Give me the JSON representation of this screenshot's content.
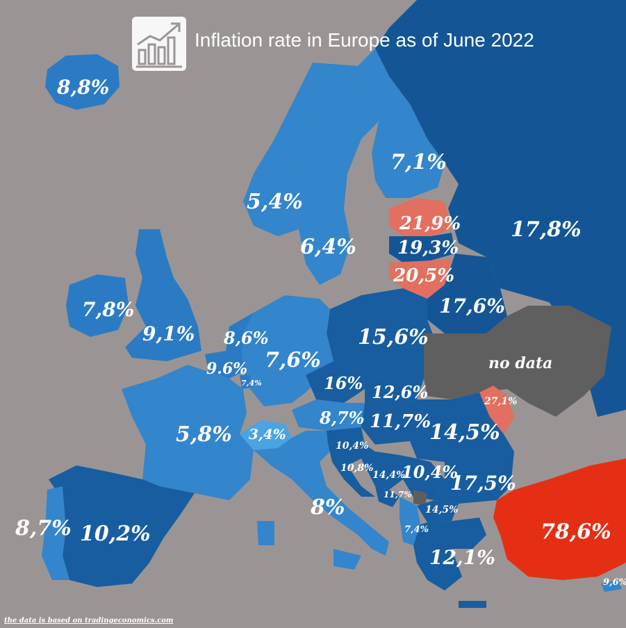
{
  "title": "Inflation rate in Europe as of June 2022",
  "source": "the data is based on tradingeconomics.com",
  "icon": "bar-chart-trend-icon",
  "colors": {
    "background": "#9a9594",
    "light_blue": "#3385cc",
    "mid_blue": "#2a7bc4",
    "dark_blue": "#175da0",
    "navy": "#145695",
    "switzerland": "#4aa3e3",
    "salmon": "#e26f5f",
    "turkey": "#e52f14",
    "no_data": "#5f5f5f"
  },
  "regions": [
    {
      "id": "iceland",
      "value": "8,8%"
    },
    {
      "id": "norway",
      "value": "5,4%"
    },
    {
      "id": "sweden",
      "value": "6,4%"
    },
    {
      "id": "finland",
      "value": "7,1%"
    },
    {
      "id": "estonia",
      "value": "21,9%"
    },
    {
      "id": "latvia",
      "value": "19,3%"
    },
    {
      "id": "lithuania",
      "value": "20,5%"
    },
    {
      "id": "russia",
      "value": "17,8%"
    },
    {
      "id": "belarus",
      "value": "17,6%"
    },
    {
      "id": "ireland",
      "value": "7,8%"
    },
    {
      "id": "uk",
      "value": "9,1%"
    },
    {
      "id": "netherlands",
      "value": "8,6%"
    },
    {
      "id": "belgium",
      "value": "9.6%"
    },
    {
      "id": "luxembourg",
      "value": "7,4%"
    },
    {
      "id": "germany",
      "value": "7,6%"
    },
    {
      "id": "poland",
      "value": "15,6%"
    },
    {
      "id": "ukraine",
      "value": "no data"
    },
    {
      "id": "czechia",
      "value": "16%"
    },
    {
      "id": "slovakia",
      "value": "12,6%"
    },
    {
      "id": "moldova",
      "value": "27,1%"
    },
    {
      "id": "france",
      "value": "5,8%"
    },
    {
      "id": "switzerland",
      "value": "3,4%"
    },
    {
      "id": "austria",
      "value": "8,7%"
    },
    {
      "id": "hungary",
      "value": "11,7%"
    },
    {
      "id": "romania",
      "value": "14,5%"
    },
    {
      "id": "slovenia",
      "value": "10,4%"
    },
    {
      "id": "croatia",
      "value": "10,8%"
    },
    {
      "id": "bosnia",
      "value": "14,4%"
    },
    {
      "id": "serbia",
      "value": "10,4%"
    },
    {
      "id": "montenegro",
      "value": "11,7%"
    },
    {
      "id": "bulgaria",
      "value": "17,5%"
    },
    {
      "id": "north-macedonia",
      "value": "14,5%"
    },
    {
      "id": "albania",
      "value": "7,4%"
    },
    {
      "id": "italy",
      "value": "8%"
    },
    {
      "id": "portugal",
      "value": "8,7%"
    },
    {
      "id": "spain",
      "value": "10,2%"
    },
    {
      "id": "greece",
      "value": "12,1%"
    },
    {
      "id": "turkey",
      "value": "78,6%"
    },
    {
      "id": "cyprus",
      "value": "9,6%"
    }
  ]
}
